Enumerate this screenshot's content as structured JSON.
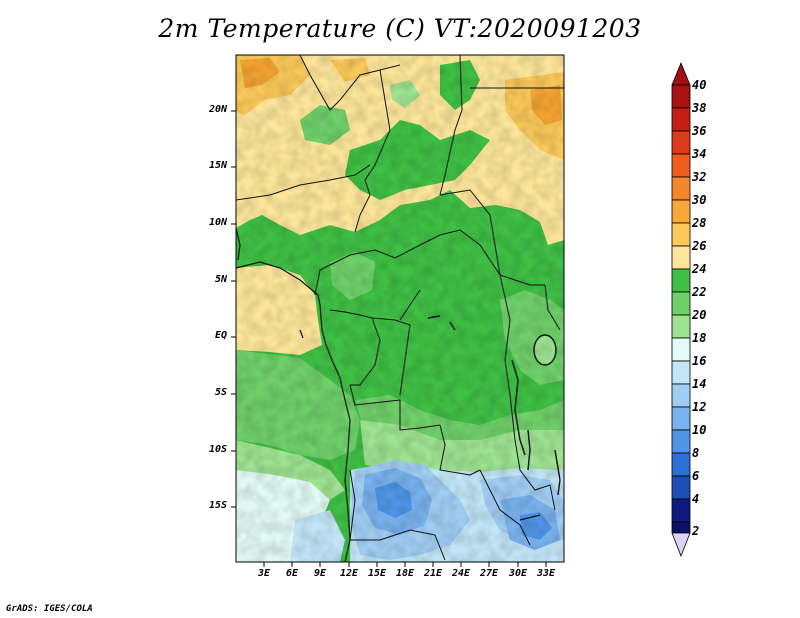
{
  "title": "2m Temperature (C) VT:2020091203",
  "credit": "GrADS: IGES/COLA",
  "map": {
    "lat_labels": [
      "20N",
      "15N",
      "10N",
      "5N",
      "EQ",
      "5S",
      "10S",
      "15S"
    ],
    "lon_labels": [
      "3E",
      "6E",
      "9E",
      "12E",
      "15E",
      "18E",
      "21E",
      "24E",
      "27E",
      "30E",
      "33E"
    ]
  },
  "colorbar": {
    "levels": [
      "40",
      "38",
      "36",
      "34",
      "32",
      "30",
      "28",
      "26",
      "24",
      "22",
      "20",
      "18",
      "16",
      "14",
      "12",
      "10",
      "8",
      "6",
      "4",
      "2"
    ],
    "colors": {
      "top_arrow": "#a01010",
      "34_36": "#c62a14",
      "32_34": "#e0461c",
      "30_32": "#f0801e",
      "28_30": "#f6a431",
      "26_28": "#fbc95a",
      "24_26": "#fde69a",
      "22_24": "#3fbf44",
      "20_22": "#6fd06a",
      "18_20": "#9ee392",
      "16_18": "#e3faf6",
      "14_16": "#c2e6f7",
      "12_14": "#a0cdf3",
      "10_12": "#79b2ef",
      "8_10": "#4f94e5",
      "6_8": "#2b70d5",
      "4_6": "#1c4fb5",
      "2_4": "#101a7c",
      "bottom_arrow": "#d9d4f3"
    }
  }
}
